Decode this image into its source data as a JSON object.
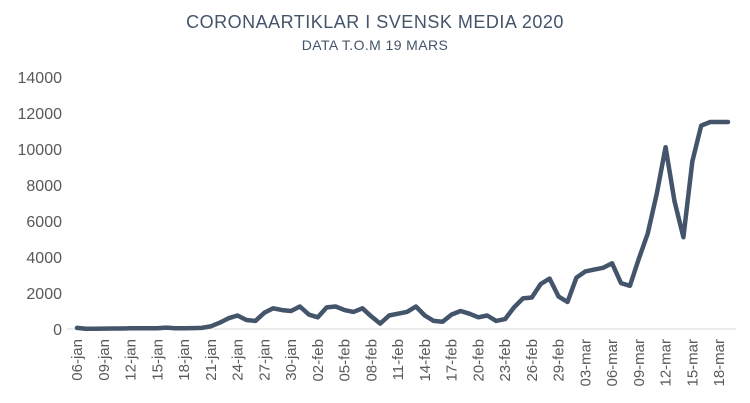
{
  "chart_data": {
    "type": "line",
    "title": "CORONAARTIKLAR I SVENSK MEDIA 2020",
    "subtitle": "DATA T.O.M 19 MARS",
    "xlabel": "",
    "ylabel": "",
    "ylim": [
      0,
      14000
    ],
    "yticks": [
      "0",
      "2000",
      "4000",
      "6000",
      "8000",
      "10000",
      "12000",
      "14000"
    ],
    "xtick_labels": [
      "06-jan",
      "09-jan",
      "12-jan",
      "15-jan",
      "18-jan",
      "21-jan",
      "24-jan",
      "27-jan",
      "30-jan",
      "02-feb",
      "05-feb",
      "08-feb",
      "11-feb",
      "14-feb",
      "17-feb",
      "20-feb",
      "23-feb",
      "26-feb",
      "29-feb",
      "03-mar",
      "06-mar",
      "09-mar",
      "12-mar",
      "15-mar",
      "18-mar"
    ],
    "grid": false,
    "legend": "none",
    "line_color": "#44546a",
    "x": [
      "06-jan",
      "07-jan",
      "08-jan",
      "09-jan",
      "10-jan",
      "11-jan",
      "12-jan",
      "13-jan",
      "14-jan",
      "15-jan",
      "16-jan",
      "17-jan",
      "18-jan",
      "19-jan",
      "20-jan",
      "21-jan",
      "22-jan",
      "23-jan",
      "24-jan",
      "25-jan",
      "26-jan",
      "27-jan",
      "28-jan",
      "29-jan",
      "30-jan",
      "31-jan",
      "01-feb",
      "02-feb",
      "03-feb",
      "04-feb",
      "05-feb",
      "06-feb",
      "07-feb",
      "08-feb",
      "09-feb",
      "10-feb",
      "11-feb",
      "12-feb",
      "13-feb",
      "14-feb",
      "15-feb",
      "16-feb",
      "17-feb",
      "18-feb",
      "19-feb",
      "20-feb",
      "21-feb",
      "22-feb",
      "23-feb",
      "24-feb",
      "25-feb",
      "26-feb",
      "27-feb",
      "28-feb",
      "29-feb",
      "01-mar",
      "02-mar",
      "03-mar",
      "04-mar",
      "05-mar",
      "06-mar",
      "07-mar",
      "08-mar",
      "09-mar",
      "10-mar",
      "11-mar",
      "12-mar",
      "13-mar",
      "14-mar",
      "15-mar",
      "16-mar",
      "17-mar",
      "18-mar",
      "19-mar"
    ],
    "series": [
      {
        "values": [
          60,
          10,
          10,
          20,
          30,
          30,
          40,
          40,
          40,
          40,
          80,
          40,
          40,
          50,
          60,
          150,
          350,
          600,
          750,
          500,
          450,
          900,
          1150,
          1050,
          1000,
          1250,
          800,
          650,
          1200,
          1250,
          1050,
          950,
          1150,
          700,
          300,
          750,
          850,
          950,
          1250,
          750,
          450,
          400,
          800,
          1000,
          850,
          650,
          750,
          450,
          550,
          1200,
          1700,
          1750,
          2500,
          2800,
          1800,
          1500,
          2850,
          3200,
          3300,
          3400,
          3650,
          2550,
          2400,
          3900,
          5300,
          7500,
          10100,
          7100,
          5100,
          9300,
          11300,
          11500,
          11500,
          11500
        ]
      }
    ]
  }
}
